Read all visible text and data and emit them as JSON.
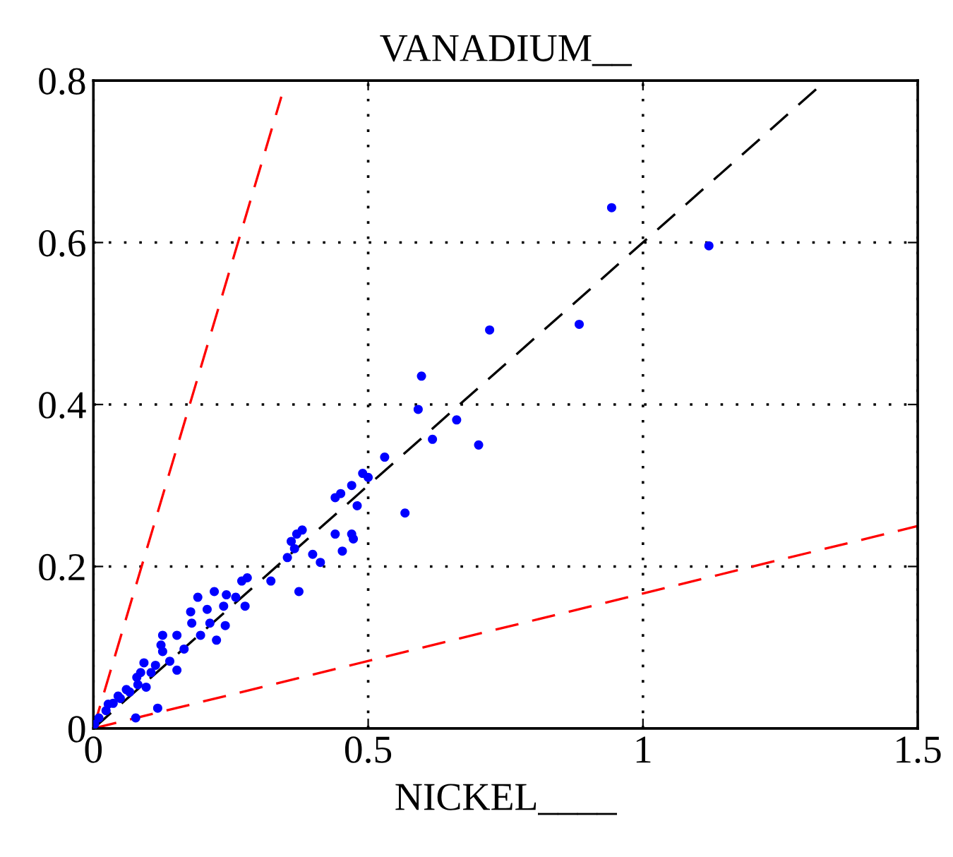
{
  "chart_data": {
    "type": "scatter",
    "title": "VANADIUM__",
    "xlabel": "NICKEL____",
    "xlim": [
      0,
      1.5
    ],
    "ylim": [
      0,
      0.8
    ],
    "xticks": [
      0,
      {
        "value": 0.5,
        "label": "0.5"
      },
      1,
      {
        "value": 1.5,
        "label": "1.5"
      }
    ],
    "yticks": [
      0,
      {
        "value": 0.2,
        "label": "0.2"
      },
      {
        "value": 0.4,
        "label": "0.4"
      },
      {
        "value": 0.6,
        "label": "0.6"
      },
      {
        "value": 0.8,
        "label": "0.8"
      }
    ],
    "grid": true,
    "legend": false,
    "series": [
      {
        "color": "#0000ff",
        "marker": "circle",
        "x": [
          0.943,
          1.12,
          0.721,
          0.884,
          0.597,
          0.591,
          0.661,
          0.617,
          0.701,
          0.567,
          0.36,
          0.366,
          0.353,
          0.399,
          0.413,
          0.453,
          0.473,
          0.374,
          0.323,
          0.28,
          0.27,
          0.44,
          0.45,
          0.47,
          0.48,
          0.49,
          0.5,
          0.53,
          0.44,
          0.47,
          0.38,
          0.37,
          0.19,
          0.22,
          0.242,
          0.259,
          0.276,
          0.237,
          0.207,
          0.177,
          0.179,
          0.212,
          0.24,
          0.224,
          0.152,
          0.126,
          0.195,
          0.165,
          0.126,
          0.139,
          0.092,
          0.152,
          0.105,
          0.079,
          0.096,
          0.066,
          0.049,
          0.036,
          0.023,
          0.01,
          0.002,
          0.117,
          0.077,
          0.123,
          0.081,
          0.06,
          0.027,
          0.045,
          0.086,
          0.113
        ],
        "values": [
          0.643,
          0.596,
          0.492,
          0.499,
          0.435,
          0.394,
          0.381,
          0.357,
          0.35,
          0.266,
          0.231,
          0.222,
          0.211,
          0.215,
          0.205,
          0.219,
          0.234,
          0.169,
          0.182,
          0.186,
          0.182,
          0.285,
          0.29,
          0.3,
          0.275,
          0.315,
          0.31,
          0.335,
          0.24,
          0.24,
          0.245,
          0.24,
          0.162,
          0.169,
          0.165,
          0.162,
          0.151,
          0.151,
          0.147,
          0.144,
          0.13,
          0.13,
          0.127,
          0.109,
          0.115,
          0.115,
          0.115,
          0.098,
          0.095,
          0.083,
          0.081,
          0.072,
          0.069,
          0.063,
          0.051,
          0.045,
          0.037,
          0.031,
          0.022,
          0.013,
          0.005,
          0.025,
          0.013,
          0.103,
          0.054,
          0.048,
          0.03,
          0.04,
          0.069,
          0.078
        ]
      },
      {
        "type": "line",
        "color": "#000000",
        "line_style": "dashed",
        "marker": "none",
        "x": [
          0,
          1.333
        ],
        "values": [
          0,
          0.8
        ]
      },
      {
        "type": "line",
        "color": "#ff0000",
        "line_style": "dashed",
        "marker": "none",
        "x": [
          0,
          0.342
        ],
        "values": [
          0,
          0.78
        ]
      },
      {
        "type": "line",
        "color": "#ff0000",
        "line_style": "dashed",
        "marker": "none",
        "x": [
          0,
          1.5
        ],
        "values": [
          0,
          0.25
        ]
      }
    ]
  }
}
